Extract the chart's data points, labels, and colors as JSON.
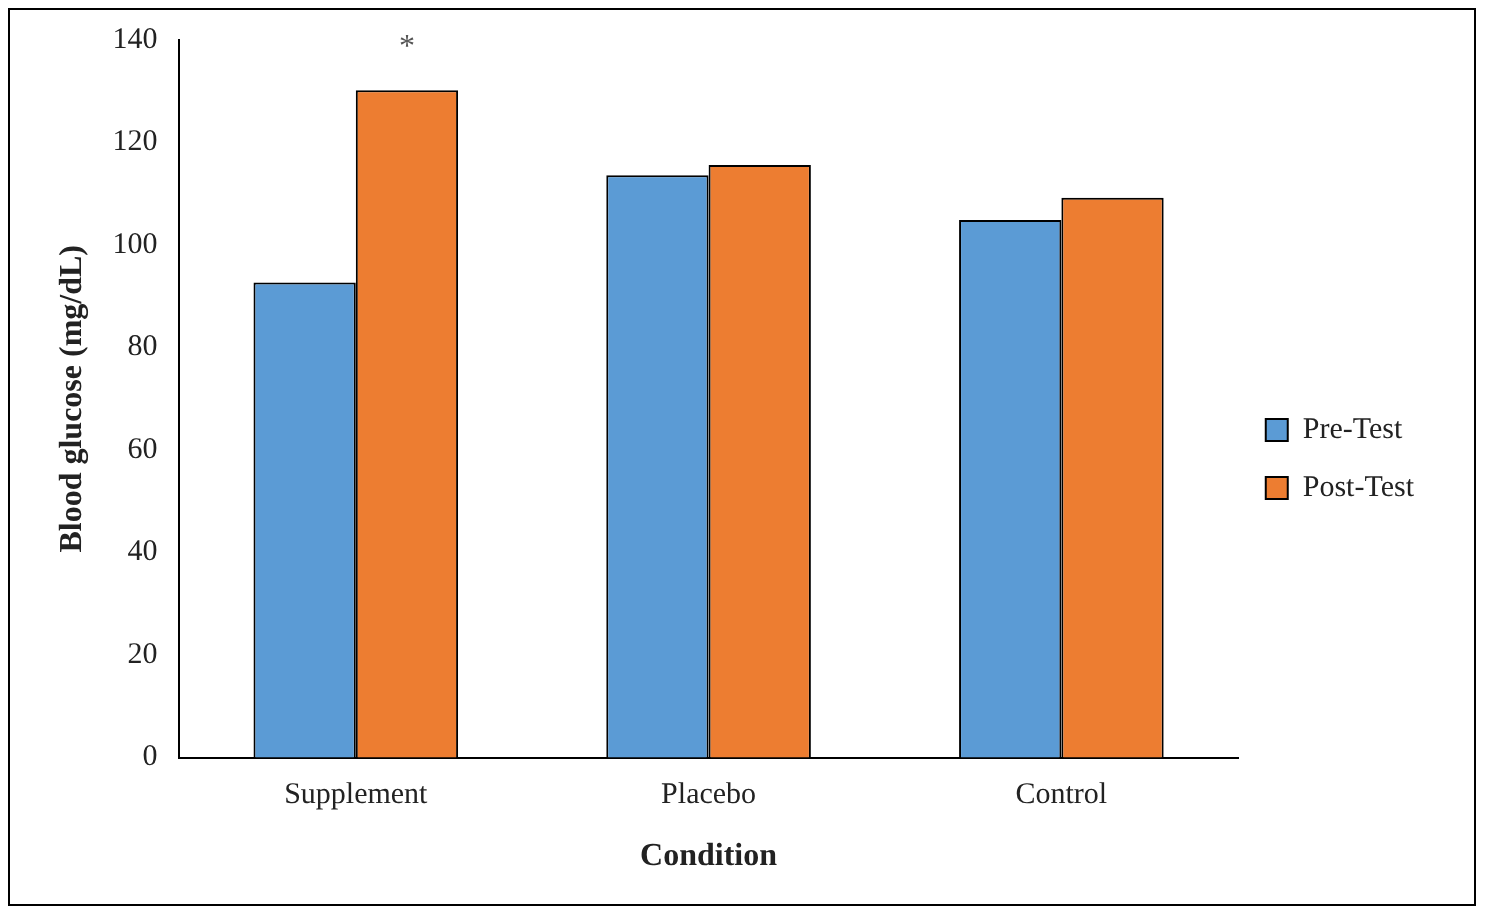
{
  "chart_data": {
    "type": "bar",
    "xlabel": "Condition",
    "ylabel": "Blood glucose (mg/dL)",
    "categories": [
      "Supplement",
      "Placebo",
      "Control"
    ],
    "series": [
      {
        "name": "Pre-Test",
        "color": "#5b9bd5",
        "values": [
          92.7,
          113.6,
          104.9
        ]
      },
      {
        "name": "Post-Test",
        "color": "#ed7d31",
        "values": [
          130.2,
          115.6,
          109.2
        ]
      }
    ],
    "ylim": [
      0,
      140
    ],
    "yticks": [
      0,
      20,
      40,
      60,
      80,
      100,
      120,
      140
    ],
    "grid": false,
    "legend": "right",
    "annotations": [
      "*"
    ]
  }
}
